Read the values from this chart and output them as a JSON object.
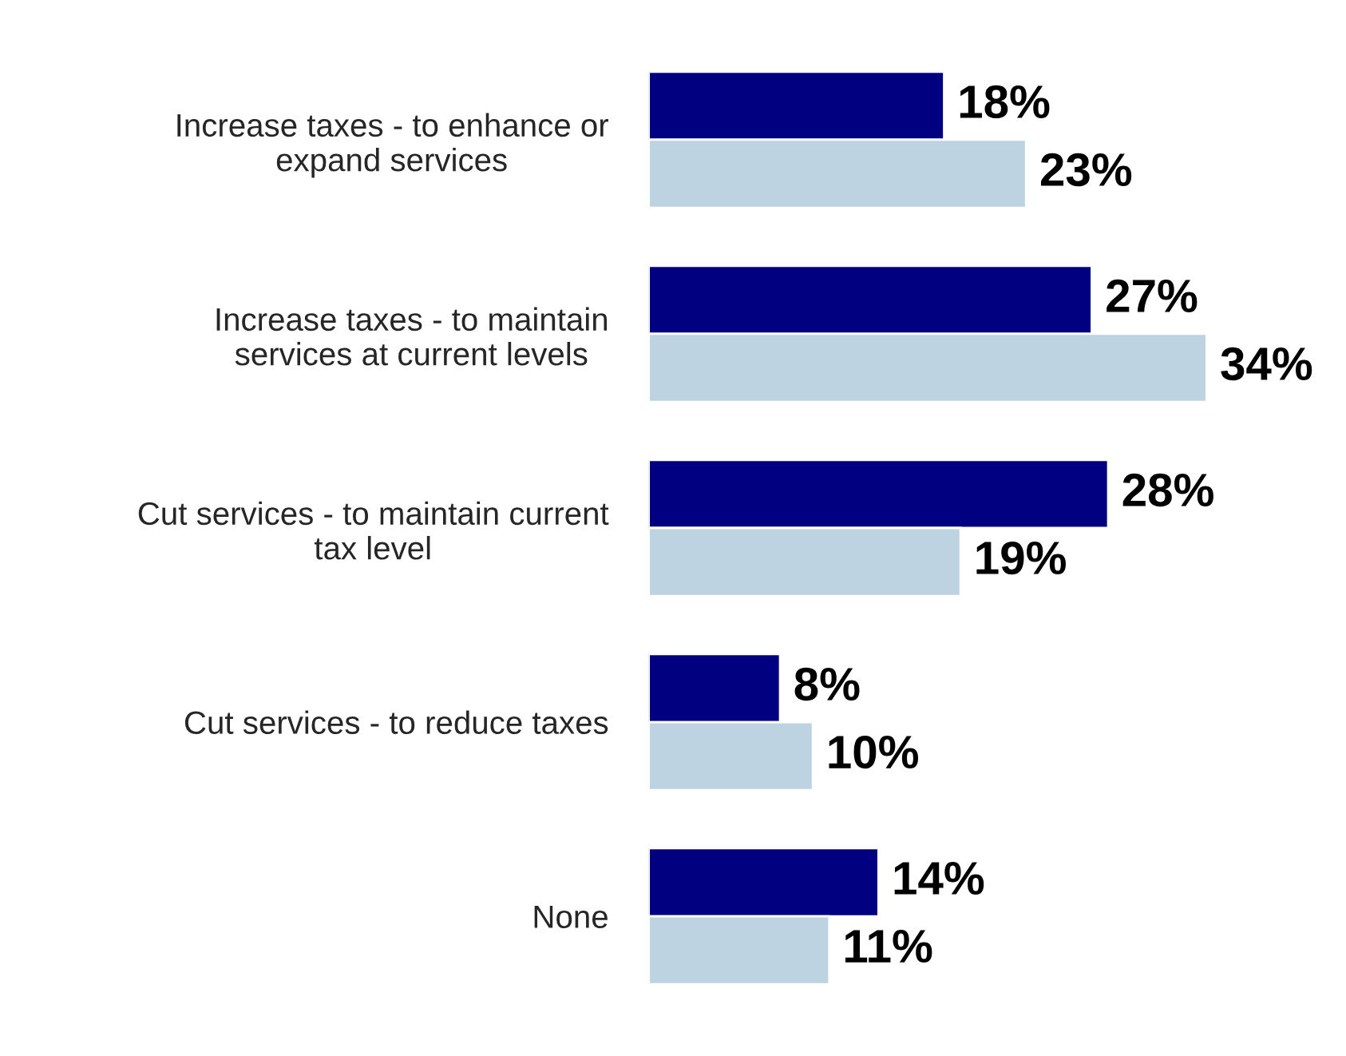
{
  "chart_data": {
    "type": "bar",
    "orientation": "horizontal",
    "categories": [
      "Increase taxes - to enhance or\nexpand services",
      "Increase taxes - to maintain\nservices at current levels",
      "Cut services - to maintain current\ntax level",
      "Cut services - to reduce taxes",
      "None"
    ],
    "series": [
      {
        "color": "#000080",
        "values": [
          18,
          27,
          28,
          8,
          14
        ],
        "value_labels": [
          "18%",
          "27%",
          "28%",
          "8%",
          "14%"
        ]
      },
      {
        "color": "#bdd3e1",
        "values": [
          23,
          34,
          19,
          10,
          11
        ],
        "value_labels": [
          "23%",
          "34%",
          "19%",
          "10%",
          "11%"
        ]
      }
    ],
    "grid": false,
    "tick_labels": "y"
  }
}
